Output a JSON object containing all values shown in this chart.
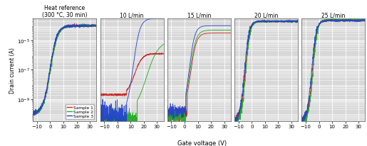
{
  "panel_titles": [
    "Heat reference\n(300 °C, 30 min)",
    "10 L/min",
    "15 L/min",
    "20 L/min",
    "25 L/min"
  ],
  "xlabel": "Gate voltage (V)",
  "ylabel": "Drain current (A)",
  "xlim": [
    -13,
    35
  ],
  "xticks": [
    -10,
    0,
    10,
    20,
    30
  ],
  "ylim_log": [
    -10.5,
    -3.5
  ],
  "colors": [
    "#cc2222",
    "#22aa22",
    "#2244cc"
  ],
  "legend_labels": [
    "Sample 1",
    "Sample 2",
    "Sample 3"
  ],
  "bg_color": "#d8d8d8",
  "figsize": [
    5.15,
    2.07
  ],
  "dpi": 100
}
